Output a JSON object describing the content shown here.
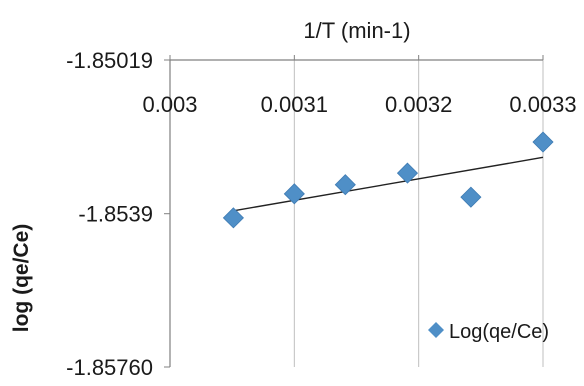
{
  "chart_data": {
    "type": "scatter",
    "xlabel": "1/T (min-1)",
    "ylabel": "log (qe/Ce)",
    "xlim": [
      0.003,
      0.0033
    ],
    "ylim": [
      -1.8576,
      -1.85019
    ],
    "x_ticks": [
      "0.003",
      "0.0031",
      "0.0032",
      "0.0033"
    ],
    "y_ticks": [
      "-1.85019",
      "-1.8539",
      "-1.85760"
    ],
    "series": [
      {
        "name": "Log(qe/Ce)",
        "x": [
          0.003051,
          0.0031,
          0.003141,
          0.003191,
          0.003242,
          0.0033
        ],
        "y": [
          -1.854,
          -1.85342,
          -1.8532,
          -1.85292,
          -1.8535,
          -1.85217
        ]
      }
    ],
    "trendline": {
      "type": "linear",
      "x": [
        0.003051,
        0.0033
      ],
      "y": [
        -1.85383,
        -1.85254
      ]
    },
    "marker_color": "#4f8fc7",
    "trendline_color": "#222222",
    "gridlines": "vertical",
    "legend_position": "bottom-right"
  }
}
